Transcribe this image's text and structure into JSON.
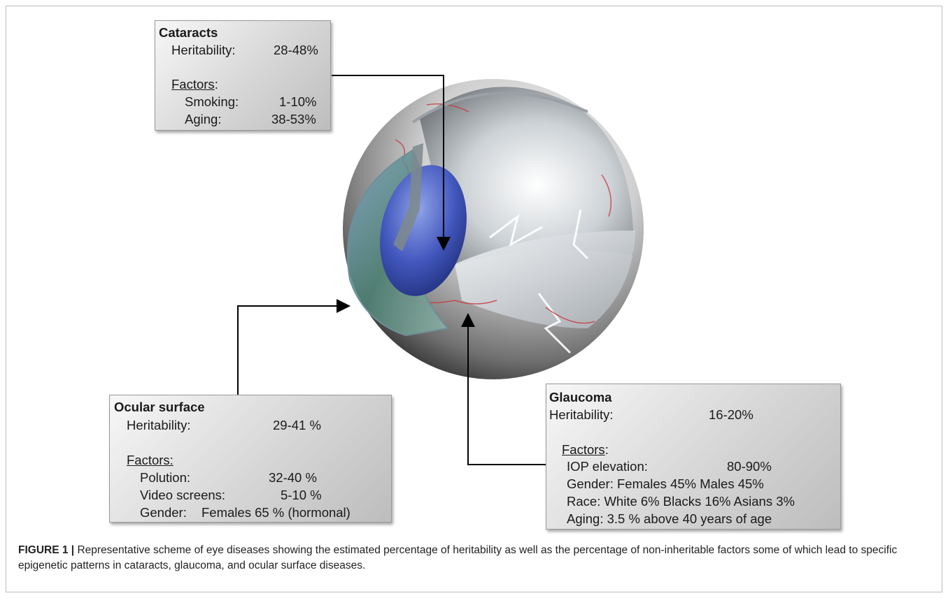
{
  "cataracts": {
    "title": "Cataracts",
    "heritability_label": "Heritability:",
    "heritability_value": "28-48%",
    "factors_label": "Factors",
    "factors_colon": ":",
    "factors": [
      {
        "label": "Smoking:",
        "value": "1-10%"
      },
      {
        "label": "Aging:",
        "value": "38-53%"
      }
    ]
  },
  "ocular_surface": {
    "title": "Ocular surface",
    "heritability_label": "Heritability:",
    "heritability_value": "29-41 %",
    "factors_label": "Factors:",
    "factors": [
      {
        "label": "Polution:",
        "value": "32-40 %"
      },
      {
        "label": "Video screens:",
        "value": "5-10 %"
      },
      {
        "label": "Gender:",
        "value": "Females 65 % (hormonal)"
      }
    ]
  },
  "glaucoma": {
    "title": "Glaucoma",
    "heritability_label": "Heritability:",
    "heritability_value": "16-20%",
    "factors_label": "Factors",
    "factors_colon": ":",
    "factors": [
      {
        "label": "IOP elevation:",
        "value": "80-90%"
      },
      {
        "label": "Gender: Females 45%  Males 45%"
      },
      {
        "label": "Race: White 6% Blacks 16% Asians 3%"
      },
      {
        "label": "Aging: 3.5 % above 40 years of age"
      }
    ]
  },
  "caption": {
    "label": "FIGURE 1 |",
    "text": " Representative scheme of eye diseases showing the estimated percentage of heritability as well as the percentage of non-inheritable factors some of which lead to specific epigenetic patterns in cataracts, glaucoma, and ocular surface diseases."
  },
  "colors": {
    "arrow": "#000000",
    "lens": "#3f56b5",
    "iris": "#4f7f78",
    "vessel": "#c8373b"
  }
}
